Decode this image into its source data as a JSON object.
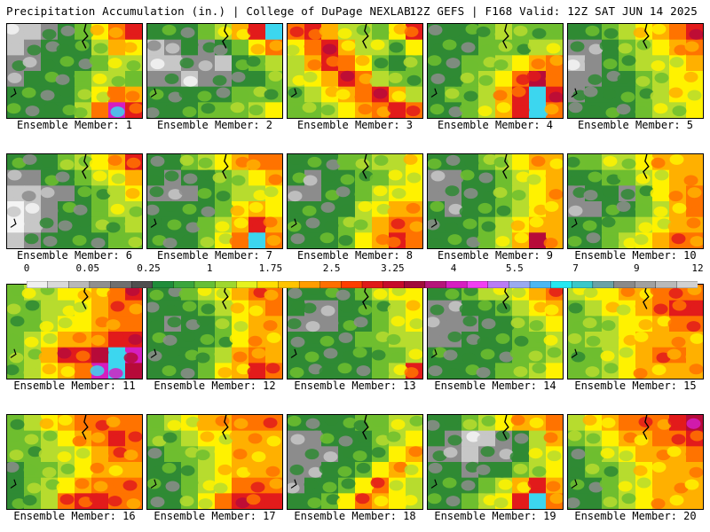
{
  "header": {
    "left": "Precipitation Accumulation (in.) | College of DuPage NEXLAB",
    "right": "12Z GEFS | F168 Valid: 12Z SAT JUN 14 2025"
  },
  "member_label_prefix": "Ensemble Member: ",
  "members": [
    {
      "label": "Ensemble Member: 1",
      "pattern": [
        [
          1,
          1,
          2,
          3,
          4,
          6,
          8,
          9
        ],
        [
          1,
          2,
          3,
          3,
          3,
          5,
          7,
          6
        ],
        [
          2,
          2,
          3,
          3,
          3,
          4,
          5,
          5
        ],
        [
          2,
          3,
          3,
          3,
          4,
          5,
          5,
          4
        ],
        [
          3,
          3,
          3,
          3,
          4,
          6,
          8,
          7
        ],
        [
          3,
          3,
          3,
          3,
          5,
          8,
          11,
          9
        ]
      ]
    },
    {
      "label": "Ensemble Member: 2",
      "pattern": [
        [
          3,
          3,
          3,
          4,
          5,
          7,
          9,
          12
        ],
        [
          1,
          2,
          3,
          2,
          3,
          4,
          6,
          8
        ],
        [
          1,
          1,
          2,
          2,
          1,
          3,
          4,
          5
        ],
        [
          2,
          2,
          1,
          2,
          2,
          3,
          3,
          4
        ],
        [
          3,
          3,
          3,
          3,
          3,
          4,
          4,
          4
        ],
        [
          3,
          3,
          3,
          4,
          4,
          4,
          5,
          6
        ]
      ]
    },
    {
      "label": "Ensemble Member: 3",
      "pattern": [
        [
          8,
          9,
          7,
          5,
          5,
          4,
          6,
          9
        ],
        [
          6,
          8,
          9,
          7,
          5,
          5,
          4,
          6
        ],
        [
          5,
          7,
          9,
          8,
          6,
          4,
          3,
          4
        ],
        [
          5,
          6,
          7,
          9,
          8,
          5,
          4,
          4
        ],
        [
          4,
          5,
          6,
          7,
          8,
          9,
          7,
          5
        ],
        [
          4,
          4,
          5,
          6,
          7,
          8,
          9,
          8
        ]
      ]
    },
    {
      "label": "Ensemble Member: 4",
      "pattern": [
        [
          3,
          3,
          3,
          4,
          5,
          4,
          4,
          4
        ],
        [
          3,
          3,
          3,
          4,
          4,
          4,
          5,
          5
        ],
        [
          3,
          3,
          4,
          4,
          5,
          6,
          7,
          8
        ],
        [
          3,
          3,
          4,
          5,
          6,
          8,
          10,
          8
        ],
        [
          3,
          4,
          4,
          5,
          7,
          9,
          12,
          9
        ],
        [
          3,
          3,
          4,
          5,
          7,
          9,
          12,
          8
        ]
      ]
    },
    {
      "label": "Ensemble Member: 5",
      "pattern": [
        [
          3,
          3,
          4,
          5,
          6,
          7,
          8,
          9
        ],
        [
          2,
          2,
          3,
          4,
          5,
          6,
          7,
          8
        ],
        [
          1,
          2,
          3,
          4,
          5,
          5,
          6,
          7
        ],
        [
          2,
          2,
          3,
          3,
          4,
          5,
          6,
          6
        ],
        [
          2,
          3,
          3,
          3,
          4,
          5,
          6,
          6
        ],
        [
          3,
          3,
          3,
          3,
          4,
          5,
          5,
          6
        ]
      ]
    },
    {
      "label": "Ensemble Member: 6",
      "pattern": [
        [
          3,
          3,
          3,
          4,
          5,
          6,
          7,
          9
        ],
        [
          2,
          2,
          3,
          3,
          4,
          5,
          6,
          7
        ],
        [
          1,
          1,
          2,
          2,
          3,
          4,
          5,
          6
        ],
        [
          0,
          1,
          2,
          3,
          3,
          4,
          5,
          5
        ],
        [
          0,
          1,
          2,
          3,
          3,
          4,
          4,
          5
        ],
        [
          1,
          2,
          3,
          3,
          3,
          3,
          4,
          4
        ]
      ]
    },
    {
      "label": "Ensemble Member: 7",
      "pattern": [
        [
          3,
          3,
          4,
          5,
          6,
          7,
          8,
          8
        ],
        [
          3,
          2,
          3,
          3,
          4,
          5,
          6,
          7
        ],
        [
          2,
          2,
          2,
          3,
          4,
          5,
          5,
          6
        ],
        [
          3,
          3,
          3,
          3,
          4,
          6,
          7,
          6
        ],
        [
          3,
          3,
          3,
          4,
          5,
          7,
          9,
          7
        ],
        [
          3,
          3,
          3,
          4,
          6,
          8,
          12,
          8
        ]
      ]
    },
    {
      "label": "Ensemble Member: 8",
      "pattern": [
        [
          3,
          3,
          3,
          4,
          4,
          5,
          5,
          6
        ],
        [
          3,
          2,
          3,
          3,
          4,
          4,
          5,
          6
        ],
        [
          2,
          2,
          3,
          3,
          4,
          5,
          6,
          6
        ],
        [
          3,
          3,
          3,
          3,
          5,
          6,
          7,
          7
        ],
        [
          3,
          3,
          3,
          4,
          5,
          7,
          8,
          8
        ],
        [
          3,
          3,
          3,
          4,
          6,
          7,
          9,
          8
        ]
      ]
    },
    {
      "label": "Ensemble Member: 9",
      "pattern": [
        [
          3,
          3,
          3,
          4,
          5,
          6,
          7,
          7
        ],
        [
          2,
          2,
          3,
          3,
          4,
          5,
          6,
          7
        ],
        [
          2,
          2,
          3,
          3,
          4,
          5,
          6,
          7
        ],
        [
          3,
          2,
          3,
          3,
          4,
          5,
          6,
          7
        ],
        [
          3,
          3,
          3,
          4,
          5,
          6,
          7,
          7
        ],
        [
          3,
          3,
          3,
          4,
          5,
          7,
          10,
          7
        ]
      ]
    },
    {
      "label": "Ensemble Member: 10",
      "pattern": [
        [
          4,
          4,
          5,
          5,
          6,
          7,
          7,
          7
        ],
        [
          3,
          3,
          4,
          4,
          5,
          6,
          7,
          7
        ],
        [
          2,
          3,
          3,
          2,
          4,
          6,
          7,
          8
        ],
        [
          2,
          2,
          3,
          3,
          4,
          5,
          7,
          8
        ],
        [
          3,
          3,
          4,
          4,
          5,
          6,
          7,
          7
        ],
        [
          3,
          3,
          4,
          5,
          6,
          7,
          8,
          8
        ]
      ]
    },
    {
      "label": "Ensemble Member: 11",
      "pattern": [
        [
          4,
          5,
          5,
          6,
          6,
          7,
          8,
          9
        ],
        [
          4,
          4,
          5,
          5,
          6,
          7,
          8,
          8
        ],
        [
          4,
          4,
          5,
          6,
          6,
          7,
          8,
          8
        ],
        [
          4,
          5,
          6,
          7,
          7,
          8,
          9,
          9
        ],
        [
          4,
          5,
          7,
          9,
          9,
          10,
          12,
          11
        ],
        [
          4,
          5,
          6,
          7,
          8,
          11,
          12,
          10
        ]
      ]
    },
    {
      "label": "Ensemble Member: 12",
      "pattern": [
        [
          3,
          3,
          4,
          5,
          6,
          7,
          8,
          8
        ],
        [
          3,
          3,
          3,
          4,
          5,
          6,
          7,
          8
        ],
        [
          3,
          2,
          3,
          3,
          4,
          6,
          7,
          7
        ],
        [
          3,
          3,
          3,
          3,
          4,
          6,
          7,
          7
        ],
        [
          3,
          3,
          3,
          4,
          5,
          7,
          8,
          7
        ],
        [
          3,
          3,
          3,
          4,
          6,
          7,
          9,
          8
        ]
      ]
    },
    {
      "label": "Ensemble Member: 13",
      "pattern": [
        [
          3,
          3,
          3,
          3,
          4,
          5,
          6,
          6
        ],
        [
          3,
          2,
          2,
          3,
          3,
          4,
          5,
          6
        ],
        [
          2,
          2,
          2,
          3,
          3,
          4,
          5,
          6
        ],
        [
          3,
          3,
          3,
          3,
          4,
          4,
          5,
          5
        ],
        [
          3,
          3,
          3,
          3,
          3,
          4,
          4,
          5
        ],
        [
          3,
          3,
          3,
          3,
          3,
          4,
          5,
          9
        ]
      ]
    },
    {
      "label": "Ensemble Member: 14",
      "pattern": [
        [
          3,
          3,
          4,
          5,
          5,
          6,
          7,
          8
        ],
        [
          2,
          2,
          3,
          3,
          4,
          5,
          6,
          7
        ],
        [
          2,
          2,
          2,
          3,
          3,
          4,
          5,
          6
        ],
        [
          2,
          2,
          3,
          3,
          3,
          4,
          4,
          5
        ],
        [
          3,
          3,
          3,
          3,
          3,
          4,
          4,
          5
        ],
        [
          3,
          3,
          3,
          3,
          4,
          4,
          5,
          6
        ]
      ]
    },
    {
      "label": "Ensemble Member: 15",
      "pattern": [
        [
          5,
          6,
          6,
          7,
          7,
          8,
          8,
          8
        ],
        [
          4,
          5,
          6,
          6,
          7,
          8,
          9,
          9
        ],
        [
          4,
          4,
          5,
          6,
          6,
          7,
          8,
          8
        ],
        [
          4,
          5,
          5,
          6,
          7,
          7,
          7,
          7
        ],
        [
          4,
          4,
          5,
          6,
          7,
          8,
          8,
          7
        ],
        [
          4,
          4,
          5,
          6,
          7,
          7,
          7,
          7
        ]
      ]
    },
    {
      "label": "Ensemble Member: 16",
      "pattern": [
        [
          4,
          5,
          6,
          7,
          8,
          8,
          8,
          8
        ],
        [
          4,
          4,
          5,
          6,
          7,
          8,
          9,
          8
        ],
        [
          4,
          4,
          5,
          5,
          6,
          7,
          8,
          8
        ],
        [
          3,
          4,
          4,
          5,
          6,
          7,
          7,
          7
        ],
        [
          3,
          4,
          5,
          6,
          7,
          8,
          8,
          8
        ],
        [
          3,
          4,
          5,
          8,
          9,
          9,
          8,
          8
        ]
      ]
    },
    {
      "label": "Ensemble Member: 17",
      "pattern": [
        [
          4,
          5,
          6,
          7,
          7,
          8,
          8,
          8
        ],
        [
          4,
          4,
          5,
          6,
          6,
          7,
          7,
          7
        ],
        [
          3,
          4,
          4,
          5,
          6,
          7,
          7,
          7
        ],
        [
          3,
          3,
          4,
          5,
          6,
          7,
          7,
          7
        ],
        [
          3,
          3,
          4,
          5,
          6,
          8,
          8,
          8
        ],
        [
          3,
          3,
          4,
          6,
          8,
          9,
          9,
          9
        ]
      ]
    },
    {
      "label": "Ensemble Member: 18",
      "pattern": [
        [
          3,
          3,
          3,
          3,
          4,
          4,
          5,
          5
        ],
        [
          2,
          2,
          3,
          3,
          3,
          4,
          5,
          6
        ],
        [
          2,
          2,
          2,
          3,
          3,
          4,
          6,
          7
        ],
        [
          2,
          2,
          3,
          3,
          4,
          6,
          7,
          6
        ],
        [
          2,
          3,
          3,
          4,
          6,
          8,
          6,
          5
        ],
        [
          3,
          3,
          4,
          6,
          8,
          7,
          6,
          5
        ]
      ]
    },
    {
      "label": "Ensemble Member: 19",
      "pattern": [
        [
          3,
          3,
          4,
          5,
          6,
          7,
          7,
          8
        ],
        [
          3,
          2,
          1,
          1,
          2,
          3,
          5,
          7
        ],
        [
          2,
          2,
          1,
          2,
          2,
          3,
          5,
          6
        ],
        [
          3,
          3,
          2,
          3,
          3,
          4,
          5,
          6
        ],
        [
          3,
          3,
          3,
          4,
          5,
          7,
          9,
          7
        ],
        [
          3,
          3,
          4,
          5,
          6,
          9,
          12,
          8
        ]
      ]
    },
    {
      "label": "Ensemble Member: 20",
      "pattern": [
        [
          5,
          6,
          7,
          8,
          8,
          8,
          9,
          10
        ],
        [
          4,
          5,
          6,
          7,
          7,
          8,
          8,
          9
        ],
        [
          3,
          4,
          5,
          6,
          7,
          7,
          7,
          8
        ],
        [
          3,
          4,
          4,
          5,
          6,
          7,
          7,
          7
        ],
        [
          3,
          3,
          4,
          5,
          6,
          7,
          7,
          7
        ],
        [
          3,
          3,
          4,
          5,
          6,
          7,
          7,
          7
        ]
      ]
    }
  ],
  "colorbar": {
    "ticks": [
      "0",
      "0.05",
      "0.25",
      "1",
      "1.75",
      "2.5",
      "3.25",
      "4",
      "5.5",
      "7",
      "9",
      "12"
    ],
    "colors": [
      "#efefef",
      "#d9d9d9",
      "#b8b8b8",
      "#8f8f8f",
      "#6f6f6f",
      "#4f4f4f",
      "#1f8d3a",
      "#3aa63c",
      "#66bf36",
      "#9fd72e",
      "#e6f21f",
      "#ffe000",
      "#ffc400",
      "#ff9d00",
      "#ff6f00",
      "#ff3d00",
      "#e01919",
      "#c60c2b",
      "#a10d3a",
      "#b5157a",
      "#d61ec1",
      "#f23ff2",
      "#b97cf4",
      "#9aaaf0",
      "#4cb7f2",
      "#24e8f0",
      "#39c8c9",
      "#6aa2a6",
      "#8a8a8a",
      "#a0a0a0",
      "#b9b9b9",
      "#d1d1d1"
    ],
    "shade_scale": [
      "#f4f4f4",
      "#c7c7c7",
      "#8c8c8c",
      "#2f8a34",
      "#6fbe2f",
      "#b7dc2e",
      "#fff200",
      "#ffb000",
      "#ff7300",
      "#e21b1b",
      "#b70b39",
      "#d51ebf",
      "#3cd6ef"
    ]
  }
}
